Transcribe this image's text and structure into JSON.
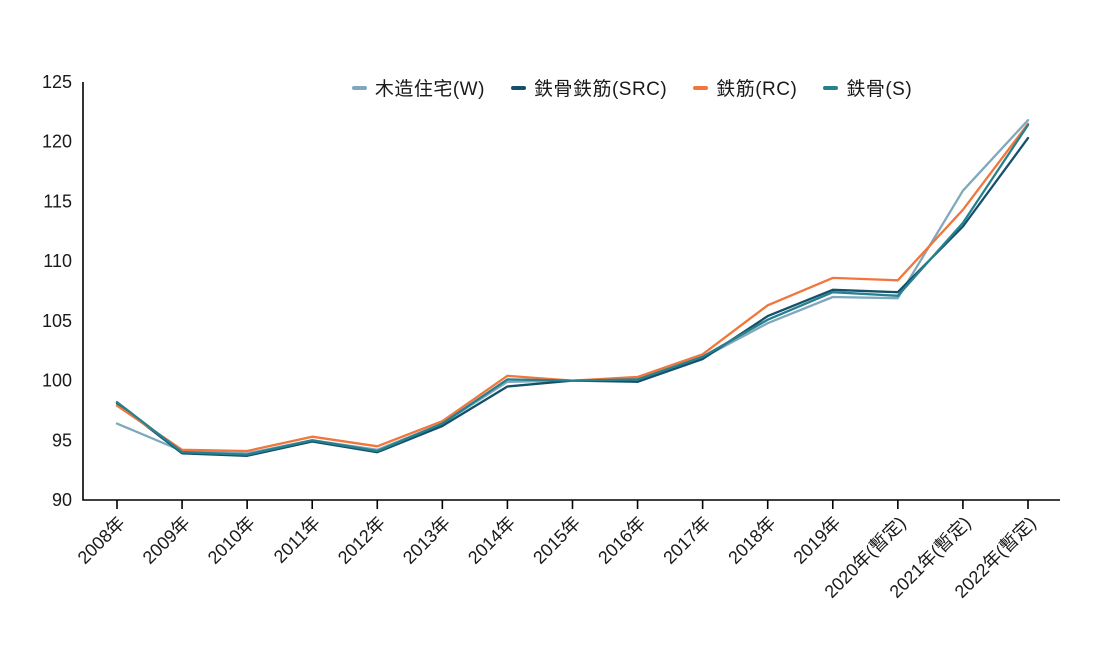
{
  "chart_data": {
    "type": "line",
    "title": "",
    "categories": [
      "2008年",
      "2009年",
      "2010年",
      "2011年",
      "2012年",
      "2013年",
      "2014年",
      "2015年",
      "2016年",
      "2017年",
      "2018年",
      "2019年",
      "2020年(暫定)",
      "2021年(暫定)",
      "2022年(暫定)"
    ],
    "series": [
      {
        "id": "w",
        "name": "木造住宅(W)",
        "color": "#7fa8bf",
        "values": [
          96.4,
          94.1,
          93.9,
          95.0,
          94.2,
          96.4,
          99.9,
          100.0,
          100.1,
          101.9,
          104.8,
          107.0,
          106.9,
          115.9,
          121.8
        ]
      },
      {
        "id": "src",
        "name": "鉄骨鉄筋(SRC)",
        "color": "#14506a",
        "values": [
          98.1,
          93.9,
          93.7,
          94.9,
          94.0,
          96.2,
          99.5,
          100.0,
          99.9,
          101.8,
          105.4,
          107.6,
          107.4,
          112.9,
          120.3
        ]
      },
      {
        "id": "rc",
        "name": "鉄筋(RC)",
        "color": "#f0763e",
        "values": [
          97.9,
          94.2,
          94.1,
          95.3,
          94.5,
          96.6,
          100.4,
          100.0,
          100.3,
          102.2,
          106.3,
          108.6,
          108.4,
          114.3,
          121.5
        ]
      },
      {
        "id": "s",
        "name": "鉄骨(S)",
        "color": "#27808d",
        "values": [
          98.2,
          94.0,
          93.8,
          95.0,
          94.1,
          96.4,
          100.1,
          100.0,
          100.1,
          102.0,
          105.1,
          107.4,
          107.1,
          113.2,
          121.4
        ]
      }
    ],
    "xlabel": "",
    "ylabel": "",
    "ylim": [
      90,
      125
    ],
    "yticks": [
      90,
      95,
      100,
      105,
      110,
      115,
      120,
      125
    ],
    "grid": false,
    "legend_position": "top",
    "axis_color": "#000000",
    "text_color": "#1a1a1a",
    "background": "#ffffff"
  }
}
